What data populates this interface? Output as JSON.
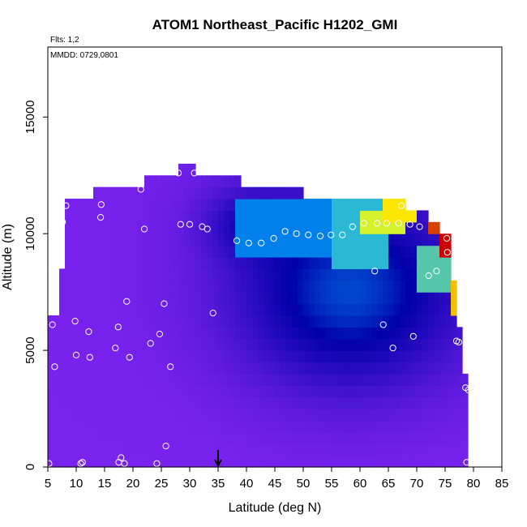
{
  "chart_data": {
    "type": "heatmap",
    "title": "ATOM1 Northeast_Pacific H1202_GMI",
    "annotation_flights": "Flts: 1,2",
    "annotation_dates": "MMDD: 0729,0801",
    "xlabel": "Latitude (deg N)",
    "ylabel": "Altitude (m)",
    "xlim": [
      5,
      85
    ],
    "ylim": [
      0,
      18000
    ],
    "xticks": [
      5,
      10,
      15,
      20,
      25,
      30,
      35,
      40,
      45,
      50,
      55,
      60,
      65,
      70,
      75,
      80,
      85
    ],
    "yticks": [
      0,
      5000,
      10000,
      15000
    ],
    "marker_arrow_latitude": 35,
    "colors": {
      "low": "#7a22ee",
      "mid": "#0000aa",
      "bright": "#00aaff",
      "high": "#ffff00",
      "peak": "#cc0000"
    },
    "field_extent": [
      {
        "lat_min": 5,
        "lat_max": 7,
        "alt_max": 6500
      },
      {
        "lat_min": 7,
        "lat_max": 8,
        "alt_max": 8500
      },
      {
        "lat_min": 8,
        "lat_max": 13,
        "alt_max": 11500
      },
      {
        "lat_min": 13,
        "lat_max": 22,
        "alt_max": 12000
      },
      {
        "lat_min": 22,
        "lat_max": 28,
        "alt_max": 12500
      },
      {
        "lat_min": 28,
        "lat_max": 31,
        "alt_max": 13000
      },
      {
        "lat_min": 31,
        "lat_max": 39,
        "alt_max": 12500
      },
      {
        "lat_min": 39,
        "lat_max": 50,
        "alt_max": 12000
      },
      {
        "lat_min": 50,
        "lat_max": 60,
        "alt_max": 11500
      },
      {
        "lat_min": 60,
        "lat_max": 68,
        "alt_max": 11500
      },
      {
        "lat_min": 68,
        "lat_max": 72,
        "alt_max": 11000
      },
      {
        "lat_min": 72,
        "lat_max": 74,
        "alt_max": 10500
      },
      {
        "lat_min": 74,
        "lat_max": 76,
        "alt_max": 10000
      },
      {
        "lat_min": 76,
        "lat_max": 77,
        "alt_max": 8000
      },
      {
        "lat_min": 77,
        "lat_max": 78,
        "alt_max": 6000
      },
      {
        "lat_min": 78,
        "lat_max": 79,
        "alt_max": 4000
      },
      {
        "lat_min": 79,
        "lat_max": 79.5,
        "alt_max": 3300
      }
    ],
    "hotspots": [
      {
        "lat_min": 55,
        "lat_max": 65,
        "alt_min": 8500,
        "alt_max": 11500,
        "level": 0.55
      },
      {
        "lat_min": 60,
        "lat_max": 68,
        "alt_min": 10000,
        "alt_max": 11000,
        "level": 0.75
      },
      {
        "lat_min": 64,
        "lat_max": 70,
        "alt_min": 10500,
        "alt_max": 11400,
        "level": 0.82
      },
      {
        "lat_min": 72,
        "lat_max": 74,
        "alt_min": 10000,
        "alt_max": 10400,
        "level": 0.95
      },
      {
        "lat_min": 74,
        "lat_max": 76,
        "alt_min": 9200,
        "alt_max": 10000,
        "level": 1.0
      },
      {
        "lat_min": 70,
        "lat_max": 76,
        "alt_min": 7500,
        "alt_max": 9500,
        "level": 0.6
      },
      {
        "lat_min": 76,
        "lat_max": 77,
        "alt_min": 6500,
        "alt_max": 8000,
        "level": 0.85
      },
      {
        "lat_min": 38,
        "lat_max": 56,
        "alt_min": 9200,
        "alt_max": 11500,
        "level": 0.45
      }
    ],
    "points": [
      {
        "lat": 5.2,
        "alt": 150
      },
      {
        "lat": 5.8,
        "alt": 6100
      },
      {
        "lat": 6.2,
        "alt": 4300
      },
      {
        "lat": 7.6,
        "alt": 10500
      },
      {
        "lat": 8.2,
        "alt": 11200
      },
      {
        "lat": 9.8,
        "alt": 6250
      },
      {
        "lat": 10.0,
        "alt": 4800
      },
      {
        "lat": 10.8,
        "alt": 150
      },
      {
        "lat": 11.1,
        "alt": 200
      },
      {
        "lat": 12.2,
        "alt": 5800
      },
      {
        "lat": 12.4,
        "alt": 4700
      },
      {
        "lat": 14.3,
        "alt": 10700
      },
      {
        "lat": 14.4,
        "alt": 11250
      },
      {
        "lat": 16.9,
        "alt": 5100
      },
      {
        "lat": 17.4,
        "alt": 6000
      },
      {
        "lat": 17.5,
        "alt": 200
      },
      {
        "lat": 17.9,
        "alt": 400
      },
      {
        "lat": 18.5,
        "alt": 150
      },
      {
        "lat": 18.9,
        "alt": 7100
      },
      {
        "lat": 19.4,
        "alt": 4700
      },
      {
        "lat": 21.4,
        "alt": 11900
      },
      {
        "lat": 22.0,
        "alt": 10200
      },
      {
        "lat": 23.1,
        "alt": 5300
      },
      {
        "lat": 24.2,
        "alt": 150
      },
      {
        "lat": 24.7,
        "alt": 5700
      },
      {
        "lat": 25.5,
        "alt": 7000
      },
      {
        "lat": 25.8,
        "alt": 900
      },
      {
        "lat": 26.6,
        "alt": 4300
      },
      {
        "lat": 28.0,
        "alt": 12600
      },
      {
        "lat": 28.4,
        "alt": 10400
      },
      {
        "lat": 30.0,
        "alt": 10400
      },
      {
        "lat": 30.8,
        "alt": 12600
      },
      {
        "lat": 32.2,
        "alt": 10300
      },
      {
        "lat": 33.1,
        "alt": 10200
      },
      {
        "lat": 34.1,
        "alt": 6600
      },
      {
        "lat": 38.3,
        "alt": 9700
      },
      {
        "lat": 40.4,
        "alt": 9600
      },
      {
        "lat": 42.6,
        "alt": 9600
      },
      {
        "lat": 44.8,
        "alt": 9800
      },
      {
        "lat": 46.8,
        "alt": 10100
      },
      {
        "lat": 48.8,
        "alt": 10000
      },
      {
        "lat": 50.9,
        "alt": 9950
      },
      {
        "lat": 53.0,
        "alt": 9900
      },
      {
        "lat": 54.9,
        "alt": 9950
      },
      {
        "lat": 56.9,
        "alt": 9950
      },
      {
        "lat": 58.7,
        "alt": 10300
      },
      {
        "lat": 60.7,
        "alt": 10450
      },
      {
        "lat": 62.6,
        "alt": 8400
      },
      {
        "lat": 63.0,
        "alt": 10450
      },
      {
        "lat": 64.1,
        "alt": 6100
      },
      {
        "lat": 64.7,
        "alt": 10450
      },
      {
        "lat": 65.8,
        "alt": 5100
      },
      {
        "lat": 66.8,
        "alt": 10450
      },
      {
        "lat": 67.3,
        "alt": 11200
      },
      {
        "lat": 68.8,
        "alt": 10400
      },
      {
        "lat": 69.4,
        "alt": 5600
      },
      {
        "lat": 70.5,
        "alt": 10300
      },
      {
        "lat": 72.1,
        "alt": 8200
      },
      {
        "lat": 73.5,
        "alt": 8400
      },
      {
        "lat": 75.3,
        "alt": 9800
      },
      {
        "lat": 75.4,
        "alt": 9200
      },
      {
        "lat": 77.0,
        "alt": 5400
      },
      {
        "lat": 77.4,
        "alt": 5350
      },
      {
        "lat": 78.6,
        "alt": 3400
      },
      {
        "lat": 78.8,
        "alt": 200
      },
      {
        "lat": 79.1,
        "alt": 3300
      }
    ]
  }
}
